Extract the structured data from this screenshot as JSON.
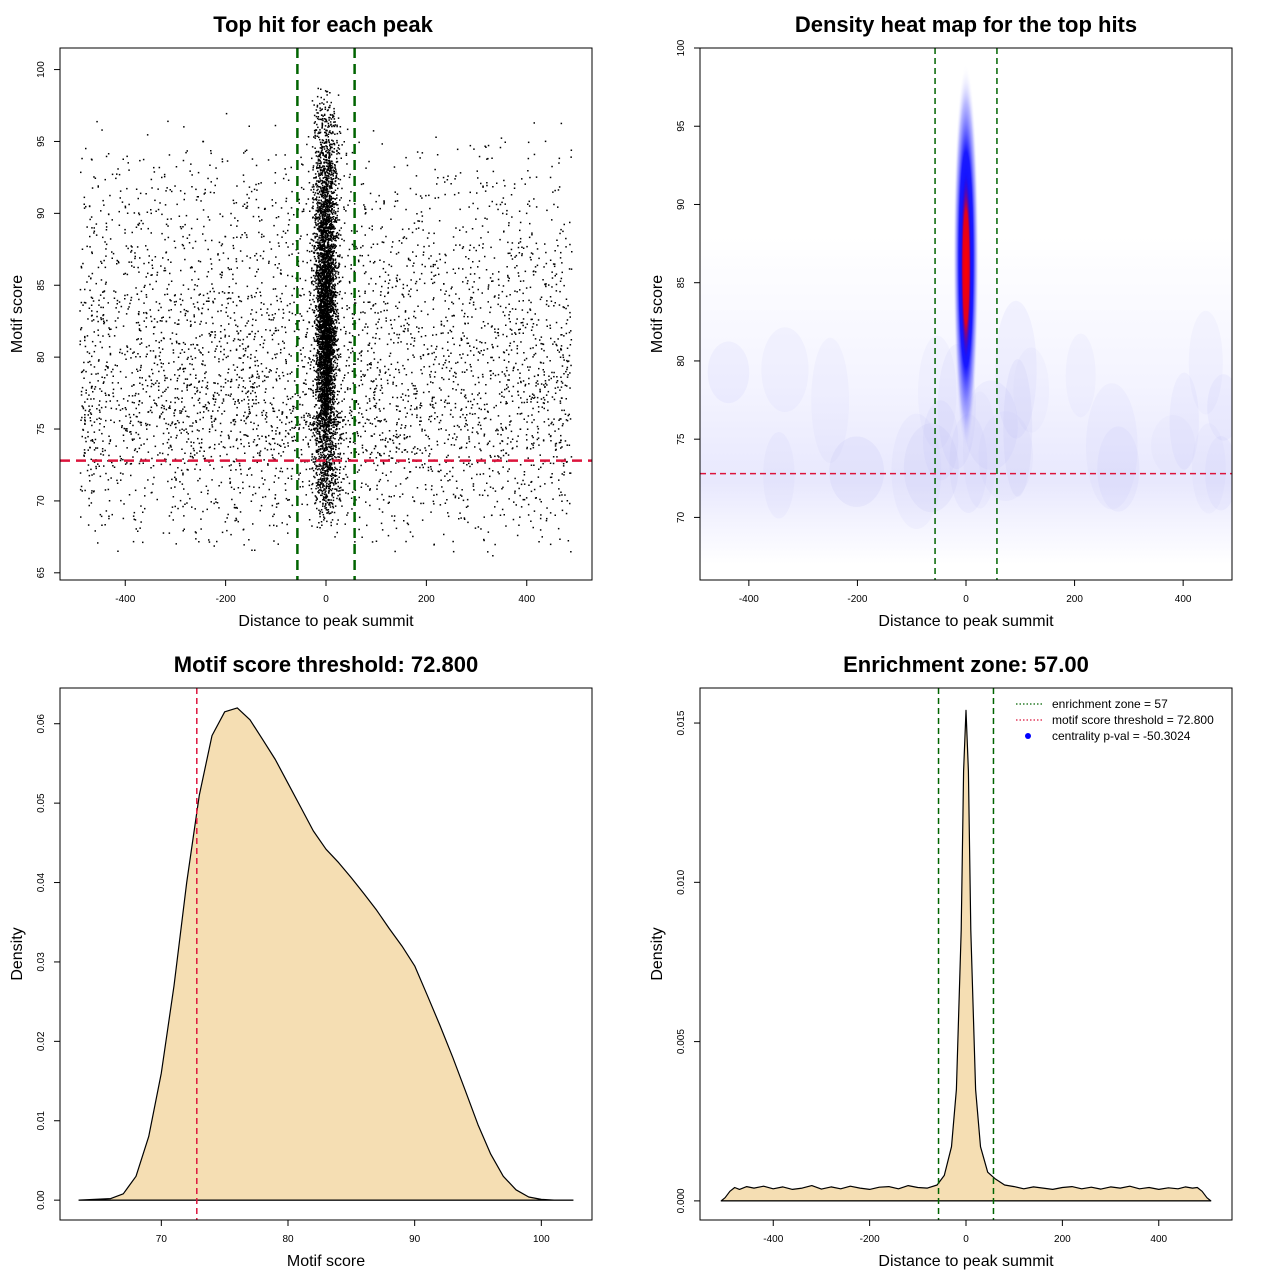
{
  "chart_data": [
    {
      "id": "scatter",
      "type": "scatter",
      "title": "Top hit for each peak",
      "xlabel": "Distance to peak summit",
      "ylabel": "Motif score",
      "xlim": [
        -530,
        530
      ],
      "ylim": [
        64.5,
        101.5
      ],
      "x_ticks": [
        -400,
        -200,
        0,
        200,
        400
      ],
      "y_ticks": [
        65,
        70,
        75,
        80,
        85,
        90,
        95,
        100
      ],
      "point_distribution": {
        "central": {
          "count": 5000,
          "x_center": 0,
          "x_spread_sd": 9,
          "y_range": [
            68,
            99
          ],
          "y_mode": 82
        },
        "background": {
          "count": 4300,
          "x_range": [
            -490,
            490
          ],
          "y_range": [
            66,
            97
          ],
          "y_mode": 76
        }
      },
      "vlines": [
        -57,
        57
      ],
      "hline": 72.8,
      "colors": {
        "points": "#000000",
        "vlines": "#006400",
        "hline": "#dc143c"
      }
    },
    {
      "id": "heatmap",
      "type": "heatmap",
      "title": "Density heat map for the top hits",
      "xlabel": "Distance to peak summit",
      "ylabel": "Motif score",
      "xlim": [
        -490,
        490
      ],
      "ylim": [
        66,
        100
      ],
      "x_ticks": [
        -400,
        -200,
        0,
        200,
        400
      ],
      "y_ticks": [
        70,
        75,
        80,
        85,
        90,
        95,
        100
      ],
      "hot_spot": {
        "x_center": 0,
        "x_width": 14,
        "y_center": 86,
        "y_extent": [
          74,
          99
        ]
      },
      "vlines": [
        -57,
        57
      ],
      "hline": 72.8,
      "colors": {
        "low": "#ffffff",
        "mid": "#0000ff",
        "high": "#ff0000",
        "vlines": "#006400",
        "hline": "#dc143c"
      }
    },
    {
      "id": "score_density",
      "type": "area",
      "title": "Motif score threshold: 72.800",
      "xlabel": "Motif score",
      "ylabel": "Density",
      "xlim": [
        62,
        104
      ],
      "ylim": [
        -0.0025,
        0.0645
      ],
      "x_ticks": [
        70,
        80,
        90,
        100
      ],
      "y_ticks": [
        0.0,
        0.01,
        0.02,
        0.03,
        0.04,
        0.05,
        0.06
      ],
      "y_tick_labels": [
        "0.00",
        "0.01",
        "0.02",
        "0.03",
        "0.04",
        "0.05",
        "0.06"
      ],
      "x": [
        63.5,
        66,
        67,
        68,
        69,
        70,
        71,
        72,
        73,
        74,
        75,
        76,
        77,
        78,
        79,
        80,
        81,
        82,
        83,
        84,
        85,
        86,
        87,
        88,
        89,
        90,
        91,
        92,
        93,
        94,
        95,
        96,
        97,
        98,
        99,
        100,
        101,
        102.5
      ],
      "y": [
        0.0,
        0.0002,
        0.0008,
        0.003,
        0.008,
        0.016,
        0.027,
        0.04,
        0.051,
        0.0585,
        0.0615,
        0.062,
        0.0605,
        0.058,
        0.0555,
        0.0525,
        0.0495,
        0.0465,
        0.0442,
        0.0425,
        0.0406,
        0.0386,
        0.0365,
        0.0342,
        0.032,
        0.0295,
        0.0258,
        0.022,
        0.018,
        0.0138,
        0.0095,
        0.0058,
        0.003,
        0.0013,
        0.0004,
        0.0001,
        0.0,
        0.0
      ],
      "vline": 72.8,
      "colors": {
        "fill": "#f5deb3",
        "line": "#000000",
        "vline": "#dc143c"
      }
    },
    {
      "id": "distance_density",
      "type": "area",
      "title": "Enrichment zone: 57.00",
      "xlabel": "Distance to peak summit",
      "ylabel": "Density",
      "xlim": [
        -552,
        552
      ],
      "ylim": [
        -0.0006,
        0.0161
      ],
      "x_ticks": [
        -400,
        -200,
        0,
        200,
        400
      ],
      "y_ticks": [
        0.0,
        0.005,
        0.01,
        0.015
      ],
      "y_tick_labels": [
        "0.000",
        "0.005",
        "0.010",
        "0.015"
      ],
      "x": [
        -508,
        -500,
        -490,
        -480,
        -470,
        -455,
        -440,
        -420,
        -400,
        -380,
        -360,
        -340,
        -320,
        -300,
        -280,
        -260,
        -240,
        -220,
        -200,
        -180,
        -160,
        -140,
        -120,
        -100,
        -80,
        -60,
        -45,
        -30,
        -20,
        -10,
        -5,
        0,
        5,
        10,
        20,
        30,
        45,
        60,
        80,
        100,
        120,
        140,
        160,
        180,
        200,
        220,
        240,
        260,
        280,
        300,
        320,
        340,
        360,
        380,
        400,
        420,
        440,
        455,
        470,
        480,
        490,
        500,
        508
      ],
      "y": [
        0.0,
        0.0001,
        0.0003,
        0.00042,
        0.00036,
        0.00045,
        0.0004,
        0.00046,
        0.00038,
        0.00044,
        0.00036,
        0.0004,
        0.00048,
        0.00037,
        0.00044,
        0.00038,
        0.00046,
        0.0004,
        0.00036,
        0.00043,
        0.00045,
        0.00038,
        0.00048,
        0.00042,
        0.0004,
        0.0005,
        0.0008,
        0.0017,
        0.0035,
        0.0085,
        0.0135,
        0.0154,
        0.0135,
        0.0085,
        0.0035,
        0.0017,
        0.0009,
        0.0007,
        0.0005,
        0.00045,
        0.00038,
        0.00044,
        0.0004,
        0.00036,
        0.00042,
        0.00045,
        0.00038,
        0.00043,
        0.00037,
        0.00044,
        0.0004,
        0.00046,
        0.00038,
        0.00042,
        0.00036,
        0.00041,
        0.00038,
        0.00044,
        0.0004,
        0.00042,
        0.0003,
        0.0001,
        0.0
      ],
      "vlines": [
        -57,
        57
      ],
      "legend": {
        "position": "top-right",
        "entries": [
          {
            "label": "enrichment zone = 57",
            "style": "dotted",
            "color": "#006400"
          },
          {
            "label": "motif score threshold = 72.800",
            "style": "dotted",
            "color": "#dc143c"
          },
          {
            "label": "centrality p-val = -50.3024",
            "style": "point",
            "color": "#0000ff"
          }
        ]
      },
      "colors": {
        "fill": "#f5deb3",
        "line": "#000000",
        "vlines": "#006400"
      }
    }
  ]
}
